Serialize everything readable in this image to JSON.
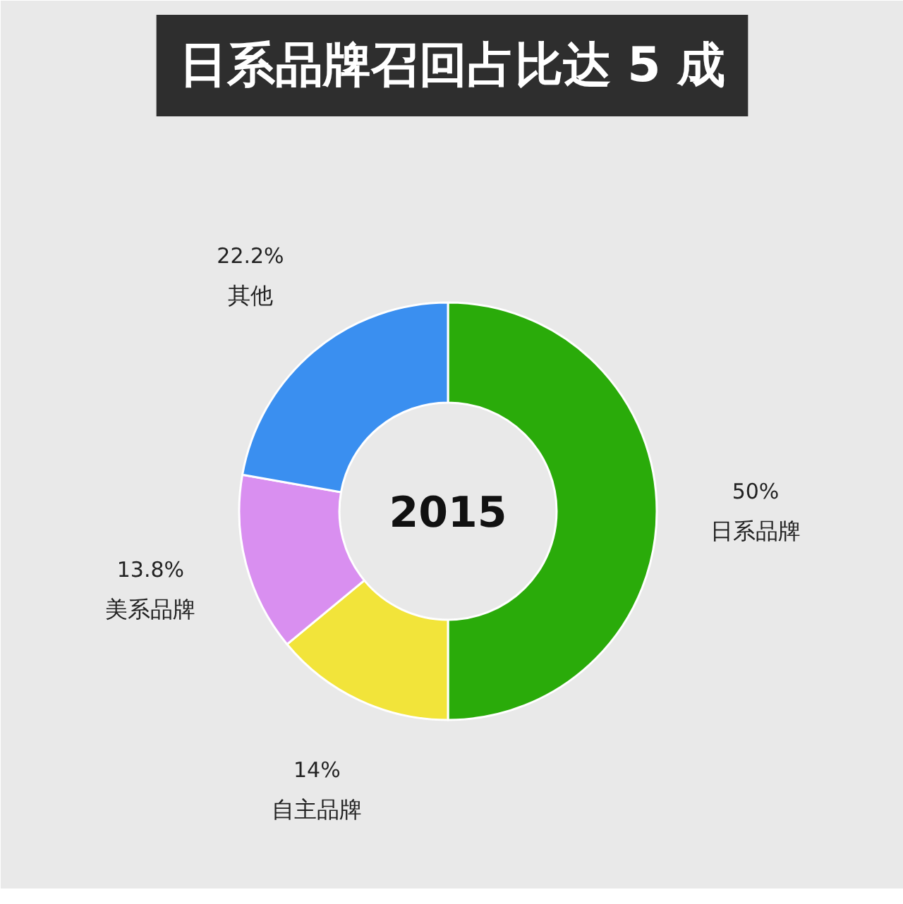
{
  "chart_data": {
    "type": "donut",
    "title": "日系品牌召回占比达 5 成",
    "categories": [
      "日系品牌",
      "自主品牌",
      "美系品牌",
      "其他"
    ],
    "values": [
      50,
      14,
      13.8,
      22.2
    ],
    "colors": [
      "#2aab0a",
      "#f2e43a",
      "#d98ff0",
      "#3a8ff0"
    ],
    "value_labels": [
      "50%",
      "14%",
      "13.8%",
      "22.2%"
    ],
    "annotations": [
      "2015"
    ]
  }
}
